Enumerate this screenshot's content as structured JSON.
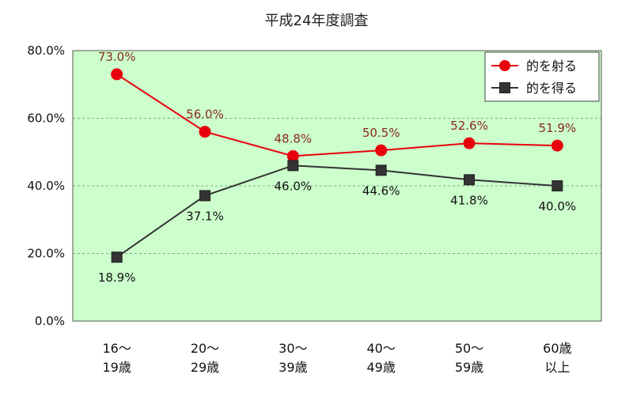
{
  "chart_data": {
    "type": "line",
    "title": "平成24年度調査",
    "xlabel": "",
    "ylabel": "",
    "ylim": [
      0,
      80
    ],
    "y_ticks": [
      "0.0%",
      "20.0%",
      "40.0%",
      "60.0%",
      "80.0%"
    ],
    "y_tick_values": [
      0,
      20,
      40,
      60,
      80
    ],
    "categories": [
      [
        "16～",
        "19歳"
      ],
      [
        "20～",
        "29歳"
      ],
      [
        "30～",
        "39歳"
      ],
      [
        "40～",
        "49歳"
      ],
      [
        "50～",
        "59歳"
      ],
      [
        "60歳",
        "以上"
      ]
    ],
    "series": [
      {
        "name": "的を射る",
        "values": [
          73.0,
          56.0,
          48.8,
          50.5,
          52.6,
          51.9
        ],
        "labels": [
          "73.0%",
          "56.0%",
          "48.8%",
          "50.5%",
          "52.6%",
          "51.9%"
        ],
        "marker": "circle",
        "color": "#e8000c"
      },
      {
        "name": "的を得る",
        "values": [
          18.9,
          37.1,
          46.0,
          44.6,
          41.8,
          40.0
        ],
        "labels": [
          "18.9%",
          "37.1%",
          "46.0%",
          "44.6%",
          "41.8%",
          "40.0%"
        ],
        "marker": "square",
        "color": "#333333"
      }
    ],
    "grid": "horizontal-dashed",
    "legend": "top-right",
    "plot_background": "#ccffcc"
  }
}
